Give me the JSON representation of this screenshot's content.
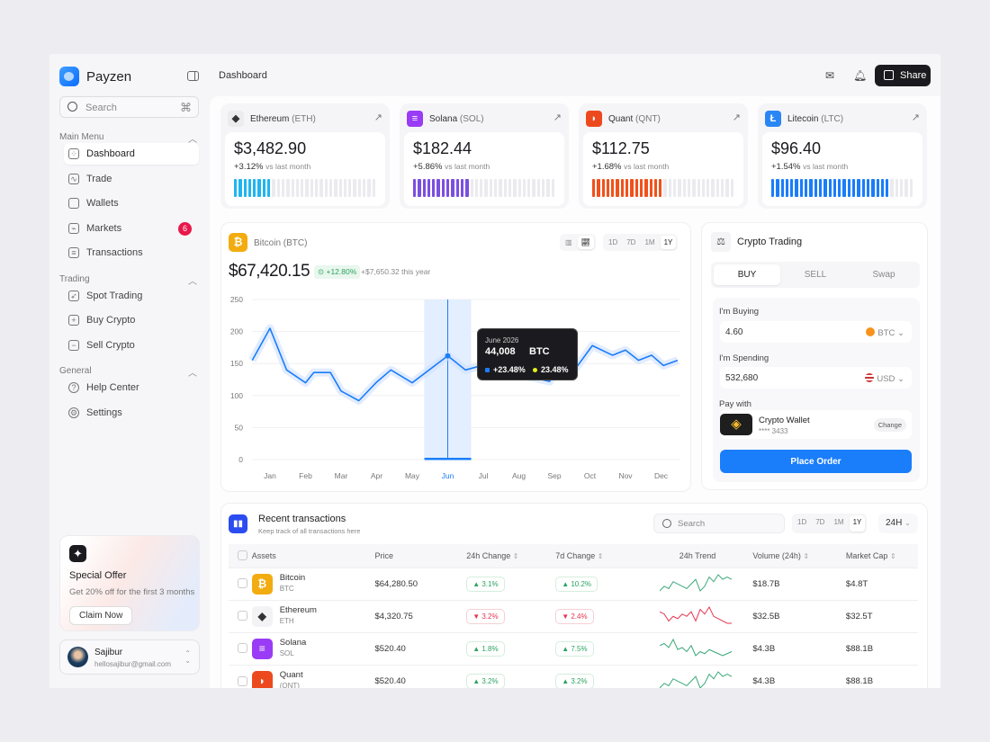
{
  "app": {
    "name": "Payzen",
    "page_title": "Dashboard",
    "share_label": "Share"
  },
  "sidebar": {
    "search_placeholder": "Search",
    "shortcut": "⌘",
    "sections": [
      {
        "title": "Main Menu",
        "items": [
          {
            "label": "Dashboard",
            "icon": "grid-icon",
            "active": true
          },
          {
            "label": "Trade",
            "icon": "chart-icon"
          },
          {
            "label": "Wallets",
            "icon": "wallet-icon"
          },
          {
            "label": "Markets",
            "icon": "markets-icon",
            "badge": "6"
          },
          {
            "label": "Transactions",
            "icon": "receipt-icon"
          }
        ]
      },
      {
        "title": "Trading",
        "items": [
          {
            "label": "Spot Trading",
            "icon": "rocket-icon"
          },
          {
            "label": "Buy Crypto",
            "icon": "plus-icon"
          },
          {
            "label": "Sell Crypto",
            "icon": "minus-icon"
          }
        ]
      },
      {
        "title": "General",
        "items": [
          {
            "label": "Help Center",
            "icon": "help-icon"
          },
          {
            "label": "Settings",
            "icon": "gear-icon"
          }
        ]
      }
    ],
    "offer": {
      "title": "Special Offer",
      "desc": "Get 20% off for the first 3 months",
      "button": "Claim Now"
    },
    "user": {
      "name": "Sajibur",
      "email": "hellosajibur@gmail.com"
    }
  },
  "tickers": [
    {
      "name": "Ethereum",
      "symbol": "(ETH)",
      "price": "$3,482.90",
      "change": "+3.12%",
      "vs": "vs last month",
      "fill": 0.27,
      "color": "#1fb5f0",
      "icon_bg": "#ececef",
      "icon_fg": "#333",
      "glyph": "◆"
    },
    {
      "name": "Solana",
      "symbol": "(SOL)",
      "price": "$182.44",
      "change": "+5.86%",
      "vs": "vs last month",
      "fill": 0.4,
      "color": "#7b4fe0",
      "icon_bg": "#9a3cf5",
      "icon_fg": "#fff",
      "glyph": "≡"
    },
    {
      "name": "Quant",
      "symbol": "(QNT)",
      "price": "$112.75",
      "change": "+1.68%",
      "vs": "vs last month",
      "fill": 0.5,
      "color": "#f0521c",
      "icon_bg": "#ec4a1e",
      "icon_fg": "#fff",
      "glyph": "◗"
    },
    {
      "name": "Litecoin",
      "symbol": "(LTC)",
      "price": "$96.40",
      "change": "+1.54%",
      "vs": "vs last month",
      "fill": 0.83,
      "color": "#1a7dfa",
      "icon_bg": "#2b86f5",
      "icon_fg": "#fff",
      "glyph": "Ł"
    }
  ],
  "btc": {
    "name": "Bitcoin",
    "symbol": "(BTC)",
    "price": "$67,420.15",
    "change": "+12.80%",
    "year_change": "+$7,650.32 this year",
    "ranges": [
      "1D",
      "7D",
      "1M",
      "1Y"
    ],
    "active_range": "1Y",
    "tooltip": {
      "date": "June 2026",
      "value": "44,008",
      "unit": "BTC",
      "p1": "+23.48%",
      "p2": "23.48%"
    }
  },
  "chart_data": {
    "type": "line",
    "xlabel": "",
    "ylabel": "",
    "ylim": [
      0,
      250
    ],
    "grid": true,
    "yticks": [
      0,
      50,
      100,
      150,
      200,
      250
    ],
    "categories": [
      "Jan",
      "Feb",
      "Mar",
      "Apr",
      "May",
      "Jun",
      "Jul",
      "Aug",
      "Sep",
      "Oct",
      "Nov",
      "Dec"
    ],
    "highlight": "Jun",
    "color": "#1a7dfa",
    "x": [
      "Dec 16",
      "Jan 1",
      "Jan 15",
      "Feb 1",
      "Feb 8",
      "Feb 22",
      "Mar 1",
      "Mar 16",
      "Apr 1",
      "Apr 13",
      "May 1",
      "Jun 1",
      "Jun 16",
      "Jul 6",
      "Jul 27",
      "Aug 27",
      "Sep 8",
      "Sep 18",
      "Oct 3",
      "Oct 20",
      "Nov 1",
      "Nov 12",
      "Nov 23",
      "Dec 3",
      "Dec 15"
    ],
    "values": [
      155,
      205,
      140,
      120,
      136,
      136,
      107,
      92,
      121,
      140,
      120,
      162,
      140,
      150,
      135,
      122,
      158,
      140,
      178,
      163,
      171,
      155,
      163,
      147,
      155
    ]
  },
  "trading": {
    "title": "Crypto Trading",
    "tabs": [
      "BUY",
      "SELL",
      "Swap"
    ],
    "active_tab": "BUY",
    "buying_label": "I'm Buying",
    "buying_value": "4.60",
    "buying_currency": "BTC",
    "spending_label": "I'm Spending",
    "spending_value": "532,680",
    "spending_currency": "USD",
    "pay_label": "Pay with",
    "wallet_name": "Crypto Wallet",
    "wallet_number": "**** 3433",
    "change_label": "Change",
    "order_label": "Place Order"
  },
  "transactions": {
    "title": "Recent transactions",
    "subtitle": "Keep track of all transactions here",
    "search_placeholder": "Search",
    "ranges": [
      "1D",
      "7D",
      "1M",
      "1Y"
    ],
    "active_range": "1Y",
    "period": "24H",
    "columns": [
      "Assets",
      "Price",
      "24h Change",
      "7d Change",
      "24h Trend",
      "Volume (24h)",
      "Market Cap"
    ],
    "rows": [
      {
        "name": "Bitcoin",
        "symbol": "BTC",
        "price": "$64,280.50",
        "c24": "3.1%",
        "c24_up": true,
        "c7": "10.2%",
        "c7_up": true,
        "volume": "$18.7B",
        "cap": "$4.8T",
        "icon_bg": "#f2ac10",
        "glyph": "₿",
        "trend": [
          3,
          5,
          4,
          7,
          6,
          5,
          4,
          6,
          8,
          3,
          5,
          9,
          7,
          10,
          8,
          9,
          8
        ]
      },
      {
        "name": "Ethereum",
        "symbol": "ETH",
        "price": "$4,320.75",
        "c24": "3.2%",
        "c24_up": false,
        "c7": "2.4%",
        "c7_up": false,
        "volume": "$32.5B",
        "cap": "$32.5T",
        "icon_bg": "#f3f3f5",
        "glyph": "◆",
        "trend": [
          7,
          6,
          3,
          5,
          4,
          6,
          5,
          7,
          3,
          8,
          6,
          9,
          5,
          4,
          3,
          2,
          2
        ]
      },
      {
        "name": "Solana",
        "symbol": "SOL",
        "price": "$520.40",
        "c24": "1.8%",
        "c24_up": true,
        "c7": "7.5%",
        "c7_up": true,
        "volume": "$4.3B",
        "cap": "$88.1B",
        "icon_bg": "#9a3cf5",
        "glyph": "≡",
        "trend": [
          7,
          8,
          6,
          10,
          5,
          6,
          4,
          7,
          2,
          4,
          3,
          5,
          4,
          3,
          2,
          3,
          4
        ]
      },
      {
        "name": "Quant",
        "symbol": "(QNT)",
        "price": "$520.40",
        "c24": "3.2%",
        "c24_up": true,
        "c7": "3.2%",
        "c7_up": true,
        "volume": "$4.3B",
        "cap": "$88.1B",
        "icon_bg": "#ec4a1e",
        "glyph": "◗",
        "trend": [
          3,
          5,
          4,
          7,
          6,
          5,
          4,
          6,
          8,
          3,
          5,
          9,
          7,
          10,
          8,
          9,
          8
        ]
      }
    ]
  }
}
